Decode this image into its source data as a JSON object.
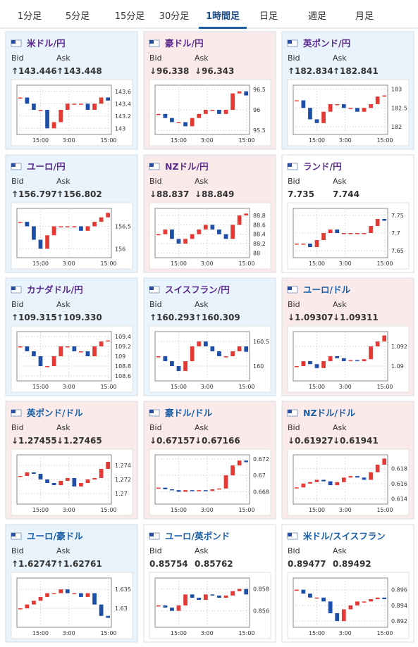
{
  "tabs": [
    "1分足",
    "5分足",
    "15分足",
    "30分足",
    "1時間足",
    "日足",
    "週足",
    "月足"
  ],
  "active_tab": 4,
  "labels": {
    "bid": "Bid",
    "ask": "Ask"
  },
  "chart_xlabels": [
    "15:00",
    "3:00",
    "15:00"
  ],
  "cards": [
    {
      "pair": "米ドル/円",
      "bid": "↑143.446",
      "ask": "↑143.448",
      "bg": "#e8f3fb",
      "pair_color": "#5b2a8e",
      "ylim": [
        142.9,
        143.7
      ],
      "yticks": [
        143.6,
        143.4,
        143.2,
        143
      ],
      "closes": [
        143.5,
        143.4,
        143.3,
        143.3,
        143.0,
        143.1,
        143.3,
        143.4,
        143.4,
        143.4,
        143.3,
        143.4,
        143.5,
        143.45
      ]
    },
    {
      "pair": "豪ドル/円",
      "bid": "↓96.338",
      "ask": "↓96.343",
      "bg": "#fbeaea",
      "pair_color": "#5b2a8e",
      "ylim": [
        95.4,
        96.6
      ],
      "yticks": [
        96.5,
        96,
        95.5
      ],
      "closes": [
        95.9,
        95.8,
        95.7,
        95.7,
        95.6,
        95.8,
        95.9,
        96.0,
        96.0,
        95.9,
        96.0,
        96.4,
        96.45,
        96.35
      ]
    },
    {
      "pair": "英ポンド/円",
      "bid": "↑182.834",
      "ask": "↑182.841",
      "bg": "#e8f3fb",
      "pair_color": "#5b2a8e",
      "ylim": [
        181.8,
        183.1
      ],
      "yticks": [
        183,
        182.5,
        182
      ],
      "closes": [
        182.7,
        182.5,
        182.2,
        182.1,
        182.4,
        182.6,
        182.6,
        182.5,
        182.5,
        182.4,
        182.5,
        182.6,
        182.8,
        182.83
      ]
    },
    {
      "pair": "ユーロ/円",
      "bid": "↑156.797",
      "ask": "↑156.802",
      "bg": "#e8f3fb",
      "pair_color": "#5b2a8e",
      "ylim": [
        155.8,
        156.9
      ],
      "yticks": [
        156.5,
        156
      ],
      "closes": [
        156.6,
        156.5,
        156.2,
        156.0,
        156.3,
        156.5,
        156.5,
        156.5,
        156.5,
        156.4,
        156.5,
        156.6,
        156.7,
        156.8
      ]
    },
    {
      "pair": "NZドル/円",
      "bid": "↓88.837",
      "ask": "↓88.849",
      "bg": "#fbeaea",
      "pair_color": "#5b2a8e",
      "ylim": [
        87.9,
        88.95
      ],
      "yticks": [
        88.8,
        88.6,
        88.4,
        88.2,
        88
      ],
      "closes": [
        88.4,
        88.5,
        88.3,
        88.2,
        88.3,
        88.4,
        88.5,
        88.6,
        88.5,
        88.4,
        88.3,
        88.6,
        88.8,
        88.84
      ]
    },
    {
      "pair": "ランド/円",
      "bid": "7.735",
      "ask": "7.744",
      "bg": "#ffffff",
      "pair_color": "#5b2a8e",
      "ylim": [
        7.63,
        7.77
      ],
      "yticks": [
        7.75,
        7.7,
        7.65
      ],
      "closes": [
        7.67,
        7.67,
        7.66,
        7.68,
        7.7,
        7.71,
        7.7,
        7.7,
        7.7,
        7.7,
        7.7,
        7.72,
        7.74,
        7.735
      ]
    },
    {
      "pair": "カナダドル/円",
      "bid": "↑109.315",
      "ask": "↑109.330",
      "bg": "#e8f3fb",
      "pair_color": "#5b2a8e",
      "ylim": [
        108.5,
        109.5
      ],
      "yticks": [
        109.4,
        109.2,
        109,
        108.8,
        108.6
      ],
      "closes": [
        109.2,
        109.1,
        109.0,
        108.8,
        108.8,
        109.0,
        109.2,
        109.2,
        109.1,
        109.1,
        109.0,
        109.2,
        109.3,
        109.32
      ]
    },
    {
      "pair": "スイスフラン/円",
      "bid": "↑160.293",
      "ask": "↑160.309",
      "bg": "#e8f3fb",
      "pair_color": "#5b2a8e",
      "ylim": [
        159.7,
        160.7
      ],
      "yticks": [
        160.5,
        160
      ],
      "closes": [
        160.2,
        160.1,
        160.0,
        159.9,
        160.1,
        160.4,
        160.5,
        160.4,
        160.3,
        160.2,
        160.2,
        160.3,
        160.4,
        160.29
      ]
    },
    {
      "pair": "ユーロ/ドル",
      "bid": "↓1.09307",
      "ask": "↓1.09311",
      "bg": "#fbeaea",
      "pair_color": "#1a5fa8",
      "ylim": [
        1.0885,
        1.0935
      ],
      "yticks": [
        1.092,
        1.09
      ],
      "closes": [
        1.09,
        1.0905,
        1.0902,
        1.0898,
        1.0905,
        1.091,
        1.0908,
        1.0905,
        1.0906,
        1.0905,
        1.0907,
        1.092,
        1.0925,
        1.0931
      ]
    },
    {
      "pair": "英ポンド/ドル",
      "bid": "↓1.27455",
      "ask": "↓1.27465",
      "bg": "#fbeaea",
      "pair_color": "#1a5fa8",
      "ylim": [
        1.2685,
        1.2755
      ],
      "yticks": [
        1.274,
        1.272,
        1.27
      ],
      "closes": [
        1.2725,
        1.273,
        1.2728,
        1.272,
        1.2715,
        1.2712,
        1.2718,
        1.2722,
        1.271,
        1.2715,
        1.272,
        1.2722,
        1.2735,
        1.2745
      ]
    },
    {
      "pair": "豪ドル/ドル",
      "bid": "↓0.67157",
      "ask": "↓0.67166",
      "bg": "#fbeaea",
      "pair_color": "#1a5fa8",
      "ylim": [
        0.6665,
        0.6725
      ],
      "yticks": [
        0.672,
        0.67,
        0.668
      ],
      "closes": [
        0.6685,
        0.6683,
        0.6682,
        0.668,
        0.6682,
        0.6681,
        0.6682,
        0.6681,
        0.6683,
        0.6684,
        0.67,
        0.6712,
        0.6718,
        0.6716
      ]
    },
    {
      "pair": "NZドル/ドル",
      "bid": "↓0.61927",
      "ask": "↓0.61941",
      "bg": "#fbeaea",
      "pair_color": "#1a5fa8",
      "ylim": [
        0.6133,
        0.6198
      ],
      "yticks": [
        0.618,
        0.616,
        0.614
      ],
      "closes": [
        0.6155,
        0.616,
        0.6162,
        0.6165,
        0.6163,
        0.6158,
        0.6162,
        0.6168,
        0.617,
        0.6168,
        0.6165,
        0.6175,
        0.6185,
        0.6193
      ]
    },
    {
      "pair": "ユーロ/豪ドル",
      "bid": "↑1.62747",
      "ask": "↑1.62761",
      "bg": "#e8f3fb",
      "pair_color": "#1a5fa8",
      "ylim": [
        1.625,
        1.638
      ],
      "yticks": [
        1.635,
        1.63
      ],
      "closes": [
        1.63,
        1.631,
        1.632,
        1.633,
        1.634,
        1.634,
        1.635,
        1.634,
        1.634,
        1.633,
        1.634,
        1.631,
        1.628,
        1.6275
      ]
    },
    {
      "pair": "ユーロ/英ポンド",
      "bid": "0.85754",
      "ask": "0.85762",
      "bg": "#ffffff",
      "pair_color": "#1a5fa8",
      "ylim": [
        0.8545,
        0.859
      ],
      "yticks": [
        0.858,
        0.856
      ],
      "closes": [
        0.8565,
        0.8563,
        0.856,
        0.8565,
        0.8575,
        0.8572,
        0.857,
        0.8575,
        0.8574,
        0.8572,
        0.8574,
        0.8578,
        0.858,
        0.8575
      ]
    },
    {
      "pair": "米ドル/スイスフラン",
      "bid": "0.89477",
      "ask": "0.89492",
      "bg": "#ffffff",
      "pair_color": "#1a5fa8",
      "ylim": [
        0.8912,
        0.8975
      ],
      "yticks": [
        0.896,
        0.894,
        0.892
      ],
      "closes": [
        0.896,
        0.8955,
        0.895,
        0.895,
        0.8945,
        0.893,
        0.892,
        0.8935,
        0.894,
        0.8945,
        0.8945,
        0.8948,
        0.895,
        0.8948
      ]
    }
  ]
}
